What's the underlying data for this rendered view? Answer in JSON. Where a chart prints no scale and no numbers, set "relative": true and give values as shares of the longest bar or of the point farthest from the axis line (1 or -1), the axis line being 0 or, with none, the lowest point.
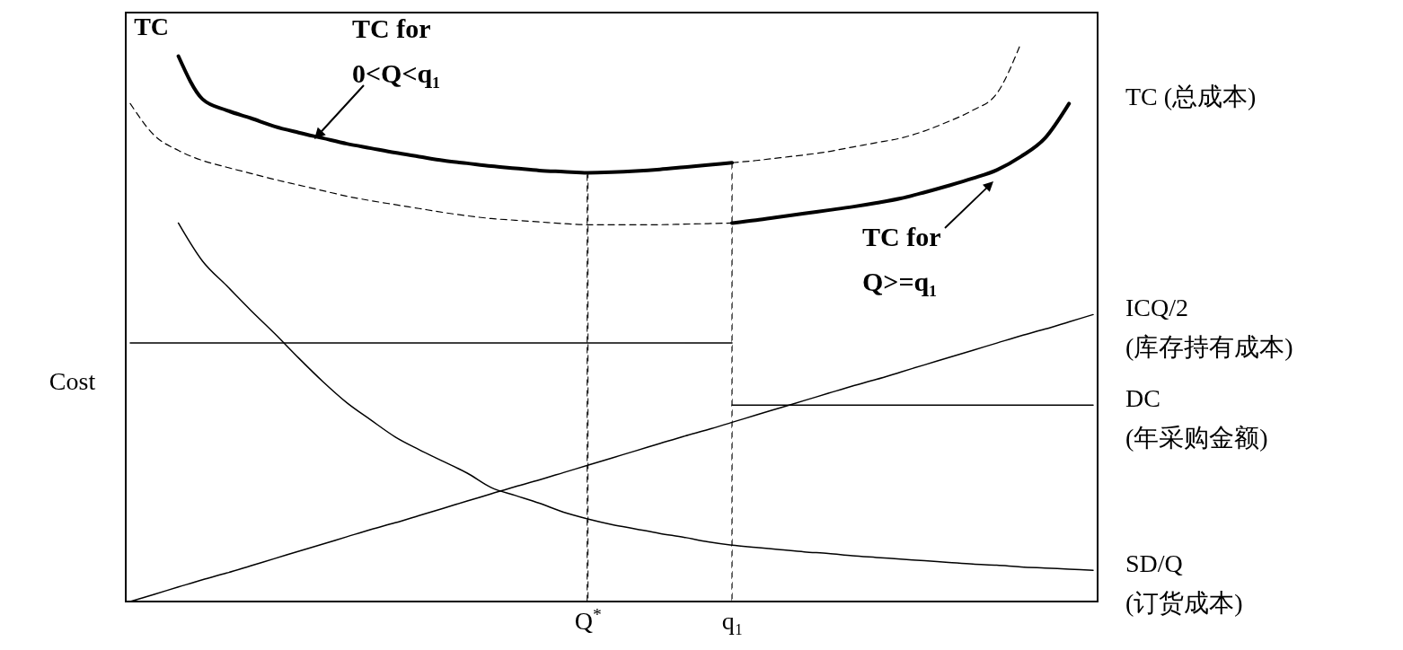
{
  "chart_data": {
    "type": "line",
    "relative": true,
    "ylabel": "Cost",
    "categories": [
      null,
      null,
      null,
      null,
      null,
      null,
      null,
      null,
      null,
      null,
      null,
      null,
      null,
      null,
      null,
      null,
      null,
      null,
      null,
      "Q$^{*}$",
      null,
      null,
      null,
      null,
      null,
      "q₁",
      null,
      null,
      null,
      null,
      null,
      null,
      null,
      null,
      null,
      null,
      null,
      null,
      null,
      null,
      null
    ],
    "series": [
      {
        "name": "TC",
        "color": "#000000",
        "values": [
          null,
          null,
          0.977,
          0.9,
          0.88,
          0.866,
          0.851,
          0.84,
          0.83,
          0.82,
          0.812,
          0.804,
          0.797,
          0.79,
          0.785,
          0.78,
          0.776,
          0.772,
          0.77,
          0.768,
          0.769,
          0.771,
          0.774,
          0.778,
          0.782,
          0.786,
          null,
          null,
          null,
          null,
          null,
          null,
          null,
          null,
          null,
          null,
          null,
          null,
          null,
          null,
          null
        ]
      },
      {
        "name": "TC (总成本)",
        "color": "#000000",
        "values": [
          null,
          null,
          null,
          null,
          null,
          null,
          null,
          null,
          null,
          null,
          null,
          null,
          null,
          null,
          null,
          null,
          null,
          null,
          null,
          null,
          null,
          null,
          null,
          null,
          null,
          0.678,
          0.683,
          0.689,
          0.695,
          0.701,
          0.707,
          0.714,
          0.722,
          0.733,
          0.745,
          0.758,
          0.773,
          0.797,
          0.83,
          0.892,
          null
        ]
      },
      {
        "color": "#000000",
        "line_style": "dashed",
        "values": [
          0.892,
          0.835,
          0.808,
          0.79,
          0.778,
          0.767,
          0.756,
          0.746,
          0.736,
          0.726,
          0.718,
          0.711,
          0.704,
          0.697,
          0.691,
          0.686,
          0.683,
          0.68,
          0.677,
          0.675,
          0.675,
          0.675,
          0.675,
          0.676,
          0.677,
          0.678,
          null,
          null,
          null,
          null,
          null,
          null,
          null,
          null,
          null,
          null,
          null,
          null,
          null,
          null,
          null
        ]
      },
      {
        "color": "#000000",
        "line_style": "dashed",
        "values": [
          null,
          null,
          null,
          null,
          null,
          null,
          null,
          null,
          null,
          null,
          null,
          null,
          null,
          null,
          null,
          null,
          null,
          null,
          null,
          null,
          null,
          null,
          null,
          null,
          null,
          0.786,
          0.79,
          0.795,
          0.8,
          0.806,
          0.814,
          0.822,
          0.83,
          0.843,
          0.86,
          0.88,
          0.91,
          1.0,
          null,
          null,
          null
        ]
      },
      {
        "name": "ICQ/2\n(库存持有成本)",
        "color": "#000000",
        "values": [
          0,
          0.013,
          0.026,
          0.039,
          0.051,
          0.064,
          0.077,
          0.09,
          0.103,
          0.116,
          0.129,
          0.141,
          0.154,
          0.167,
          0.18,
          0.193,
          0.206,
          0.218,
          0.231,
          0.244,
          0.257,
          0.27,
          0.283,
          0.296,
          0.308,
          0.321,
          0.334,
          0.347,
          0.36,
          0.373,
          0.386,
          0.398,
          0.411,
          0.424,
          0.437,
          0.45,
          0.463,
          0.476,
          0.488,
          0.501,
          0.514
        ]
      },
      {
        "color": "#000000",
        "values": [
          0.463,
          0.463,
          0.463,
          0.463,
          0.463,
          0.463,
          0.463,
          0.463,
          0.463,
          0.463,
          0.463,
          0.463,
          0.463,
          0.463,
          0.463,
          0.463,
          0.463,
          0.463,
          0.463,
          0.463,
          0.463,
          0.463,
          0.463,
          0.463,
          0.463,
          0.463,
          null,
          null,
          null,
          null,
          null,
          null,
          null,
          null,
          null,
          null,
          null,
          null,
          null,
          null,
          null
        ]
      },
      {
        "name": "DC\n(年采购金额)",
        "color": "#000000",
        "values": [
          null,
          null,
          null,
          null,
          null,
          null,
          null,
          null,
          null,
          null,
          null,
          null,
          null,
          null,
          null,
          null,
          null,
          null,
          null,
          null,
          null,
          null,
          null,
          null,
          null,
          0.352,
          0.352,
          0.352,
          0.352,
          0.352,
          0.352,
          0.352,
          0.352,
          0.352,
          0.352,
          0.352,
          0.352,
          0.352,
          0.352,
          0.352,
          0.352
        ]
      },
      {
        "name": "SD/Q\n(订货成本)",
        "color": "#000000",
        "values": [
          null,
          null,
          0.678,
          0.61,
          0.566,
          0.522,
          0.48,
          0.436,
          0.394,
          0.356,
          0.325,
          0.295,
          0.272,
          0.251,
          0.23,
          0.204,
          0.19,
          0.176,
          0.16,
          0.148,
          0.138,
          0.13,
          0.122,
          0.115,
          0.107,
          0.101,
          0.097,
          0.093,
          0.089,
          0.086,
          0.082,
          0.079,
          0.076,
          0.073,
          0.07,
          0.067,
          0.065,
          0.062,
          0.06,
          0.058,
          0.056
        ]
      },
      {
        "type": "bar",
        "color": "#000000",
        "line_style": "dashed",
        "values": [
          null,
          null,
          null,
          null,
          null,
          null,
          null,
          null,
          null,
          null,
          null,
          null,
          null,
          null,
          null,
          null,
          null,
          null,
          null,
          0.768,
          null,
          null,
          null,
          null,
          null,
          null,
          null,
          null,
          null,
          null,
          null,
          null,
          null,
          null,
          null,
          null,
          null,
          null,
          null,
          null,
          null
        ]
      },
      {
        "type": "bar",
        "color": "#000000",
        "line_style": "dashed",
        "values": [
          null,
          null,
          null,
          null,
          null,
          null,
          null,
          null,
          null,
          null,
          null,
          null,
          null,
          null,
          null,
          null,
          null,
          null,
          null,
          null,
          null,
          null,
          null,
          null,
          null,
          0.786,
          null,
          null,
          null,
          null,
          null,
          null,
          null,
          null,
          null,
          null,
          null,
          null,
          null,
          null,
          null
        ]
      }
    ],
    "annotations": [
      "TC for\n0<Q<q₁",
      "TC for\nQ>=q₁"
    ]
  }
}
